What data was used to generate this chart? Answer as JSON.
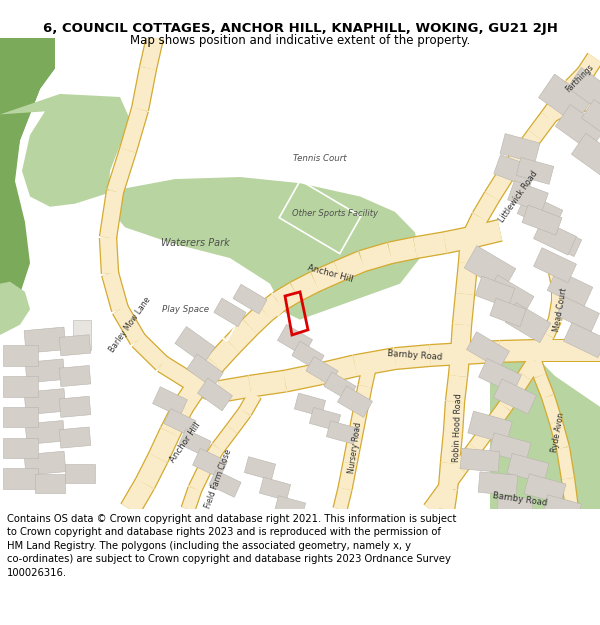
{
  "title_line1": "6, COUNCIL COTTAGES, ANCHOR HILL, KNAPHILL, WOKING, GU21 2JH",
  "title_line2": "Map shows position and indicative extent of the property.",
  "footer_lines": [
    "Contains OS data © Crown copyright and database right 2021. This information is subject",
    "to Crown copyright and database rights 2023 and is reproduced with the permission of",
    "HM Land Registry. The polygons (including the associated geometry, namely x, y",
    "co-ordinates) are subject to Crown copyright and database rights 2023 Ordnance Survey",
    "100026316."
  ],
  "title_fontsize": 9.5,
  "subtitle_fontsize": 8.5,
  "footer_fontsize": 7.2,
  "fig_width": 6.0,
  "fig_height": 6.25,
  "map_bg_color": "#f5f0eb",
  "dark_green_color": "#7aaa5a",
  "light_green_color": "#b8d4a0",
  "road_fill_color": "#faecc8",
  "road_edge_color": "#d4aa30",
  "building_fill": "#d4cfc8",
  "building_edge": "#b8b4ae",
  "plot_color": "#dd0000",
  "text_dark": "#303030",
  "text_label": "#505050",
  "white": "#ffffff"
}
